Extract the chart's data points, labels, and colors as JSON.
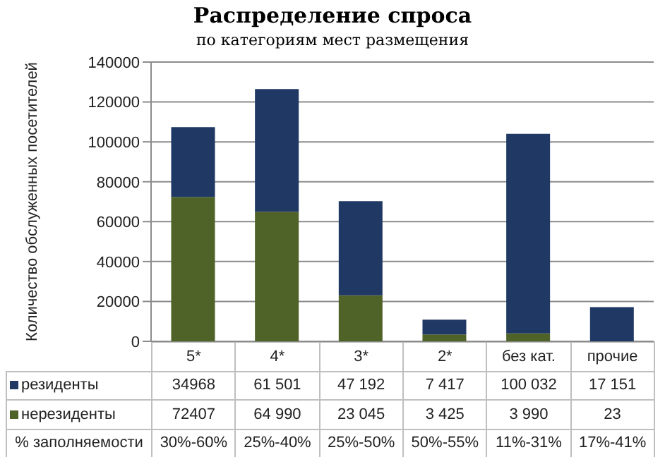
{
  "chart_data": {
    "type": "bar",
    "title": "Распределение спроса",
    "subtitle": "по категориям мест размещения",
    "ylabel": "Количество обслуженных посетителей",
    "categories": [
      "5*",
      "4*",
      "3*",
      "2*",
      "без кат.",
      "прочие"
    ],
    "stacked": true,
    "series": [
      {
        "name": "нерезиденты",
        "color": "#4f6228",
        "values": [
          72407,
          64990,
          23045,
          3425,
          3990,
          23
        ],
        "value_labels": [
          "72407",
          "64 990",
          "23 045",
          "3 425",
          "3 990",
          "23"
        ]
      },
      {
        "name": "резиденты",
        "color": "#1f3864",
        "values": [
          34968,
          61501,
          47192,
          7417,
          100032,
          17151
        ],
        "value_labels": [
          "34968",
          "61 501",
          "47 192",
          "7 417",
          "100 032",
          "17 151"
        ]
      }
    ],
    "ylim": [
      0,
      140000
    ],
    "yticks": [
      0,
      20000,
      40000,
      60000,
      80000,
      100000,
      120000,
      140000
    ],
    "grid": "y",
    "legend": "bottom",
    "annotations": [
      "% заполняемости",
      "30%-60%",
      "25%-40%",
      "25%-50%",
      "50%-55%",
      "11%-31%",
      "17%-41%"
    ]
  }
}
